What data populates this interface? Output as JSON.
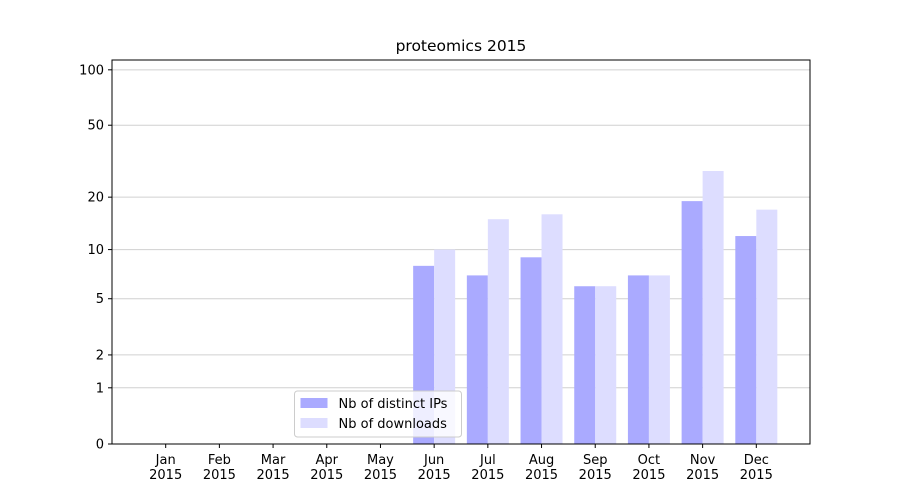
{
  "chart_data": {
    "type": "bar",
    "title": "proteomics 2015",
    "categories": [
      "Jan\n2015",
      "Feb\n2015",
      "Mar\n2015",
      "Apr\n2015",
      "May\n2015",
      "Jun\n2015",
      "Jul\n2015",
      "Aug\n2015",
      "Sep\n2015",
      "Oct\n2015",
      "Nov\n2015",
      "Dec\n2015"
    ],
    "series": [
      {
        "name": "Nb of distinct IPs",
        "color": "#aaaaff",
        "values": [
          0,
          0,
          0,
          0,
          0,
          8,
          7,
          9,
          6,
          7,
          19,
          12
        ]
      },
      {
        "name": "Nb of downloads",
        "color": "#ddddff",
        "values": [
          0,
          0,
          0,
          0,
          0,
          10,
          15,
          16,
          6,
          7,
          28,
          17
        ]
      }
    ],
    "yscale": "symlog",
    "ylim": [
      0,
      113
    ],
    "yticks": [
      0,
      1,
      2,
      5,
      10,
      20,
      50,
      100
    ],
    "grid": true,
    "legend": "lower center"
  }
}
